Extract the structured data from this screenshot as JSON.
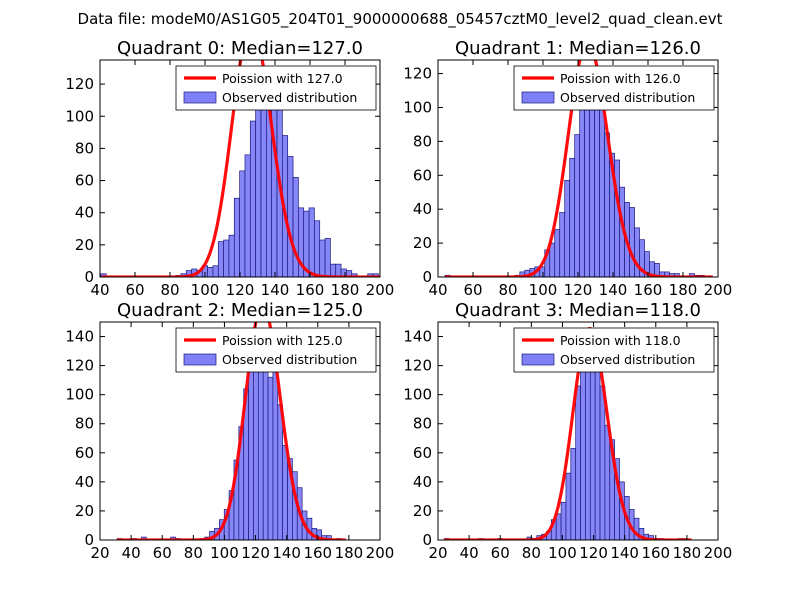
{
  "figure_title": "Data file: modeM0/AS1G05_204T01_9000000688_05457cztM0_level2_quad_clean.evt",
  "colors": {
    "bar_fill": "#7f7ff6",
    "bar_edge": "#1a1a80",
    "line": "#ff0000"
  },
  "chart_data": [
    {
      "type": "bar",
      "title": "Quadrant 0: Median=127.0",
      "xlim": [
        40,
        200
      ],
      "ylim": [
        0,
        135
      ],
      "xticks": [
        40,
        60,
        80,
        100,
        120,
        140,
        160,
        180,
        200
      ],
      "yticks": [
        0,
        20,
        40,
        60,
        80,
        100,
        120
      ],
      "median": 127,
      "bin_start": 40.5,
      "bin_width": 3.05,
      "counts": [
        2,
        0,
        0,
        0,
        0,
        0,
        0,
        0,
        0,
        0,
        0,
        0,
        0,
        0,
        1,
        2,
        4,
        5,
        4,
        7,
        6,
        7,
        22,
        23,
        26,
        49,
        66,
        76,
        97,
        107,
        125,
        114,
        130,
        114,
        88,
        75,
        62,
        43,
        41,
        43,
        35,
        23,
        24,
        8,
        8,
        5,
        4,
        2,
        0,
        0,
        2,
        2,
        0,
        0,
        0
      ],
      "legend": [
        "Poission with 127.0",
        "Observed distribution"
      ]
    },
    {
      "type": "bar",
      "title": "Quadrant 1: Median=126.0",
      "xlim": [
        40,
        200
      ],
      "ylim": [
        0,
        128
      ],
      "xticks": [
        40,
        60,
        80,
        100,
        120,
        140,
        160,
        180,
        200
      ],
      "yticks": [
        0,
        20,
        40,
        60,
        80,
        100,
        120
      ],
      "median": 126,
      "bin_start": 44,
      "bin_width": 2.85,
      "counts": [
        1,
        0,
        0,
        0,
        0,
        0,
        0,
        0,
        0,
        0,
        0,
        0,
        0,
        0,
        1,
        3,
        4,
        5,
        6,
        6,
        16,
        20,
        28,
        38,
        57,
        70,
        84,
        106,
        119,
        107,
        121,
        113,
        85,
        73,
        69,
        53,
        44,
        41,
        29,
        22,
        15,
        9,
        8,
        3,
        3,
        2,
        2,
        0,
        0,
        2,
        1,
        1,
        0,
        0
      ],
      "legend": [
        "Poission with 126.0",
        "Observed distribution"
      ]
    },
    {
      "type": "bar",
      "title": "Quadrant 2: Median=125.0",
      "xlim": [
        20,
        200
      ],
      "ylim": [
        0,
        150
      ],
      "xticks": [
        20,
        40,
        60,
        80,
        100,
        120,
        140,
        160,
        180,
        200
      ],
      "yticks": [
        0,
        20,
        40,
        60,
        80,
        100,
        120,
        140
      ],
      "median": 125,
      "bin_start": 31,
      "bin_width": 3.13,
      "counts": [
        1,
        0,
        0,
        1,
        0,
        2,
        0,
        0,
        0,
        0,
        0,
        2,
        1,
        0,
        0,
        0,
        0,
        1,
        2,
        6,
        8,
        14,
        21,
        34,
        55,
        78,
        104,
        132,
        136,
        141,
        124,
        112,
        119,
        93,
        65,
        56,
        47,
        36,
        20,
        15,
        8,
        7,
        3,
        3,
        0,
        1,
        0
      ],
      "legend": [
        "Poission with 125.0",
        "Observed distribution"
      ]
    },
    {
      "type": "bar",
      "title": "Quadrant 3: Median=118.0",
      "xlim": [
        20,
        200
      ],
      "ylim": [
        0,
        150
      ],
      "xticks": [
        20,
        40,
        60,
        80,
        100,
        120,
        140,
        160,
        180,
        200
      ],
      "yticks": [
        0,
        20,
        40,
        60,
        80,
        100,
        120,
        140
      ],
      "median": 118,
      "bin_start": 24,
      "bin_width": 3.13,
      "counts": [
        1,
        0,
        0,
        0,
        0,
        0,
        0,
        1,
        0,
        0,
        0,
        1,
        0,
        0,
        0,
        0,
        0,
        2,
        1,
        3,
        4,
        6,
        14,
        18,
        26,
        46,
        63,
        106,
        142,
        130,
        140,
        127,
        106,
        79,
        69,
        56,
        40,
        30,
        21,
        15,
        8,
        4,
        3,
        1,
        1,
        0,
        0,
        0,
        1,
        1,
        0
      ],
      "legend": [
        "Poission with 118.0",
        "Observed distribution"
      ]
    }
  ]
}
